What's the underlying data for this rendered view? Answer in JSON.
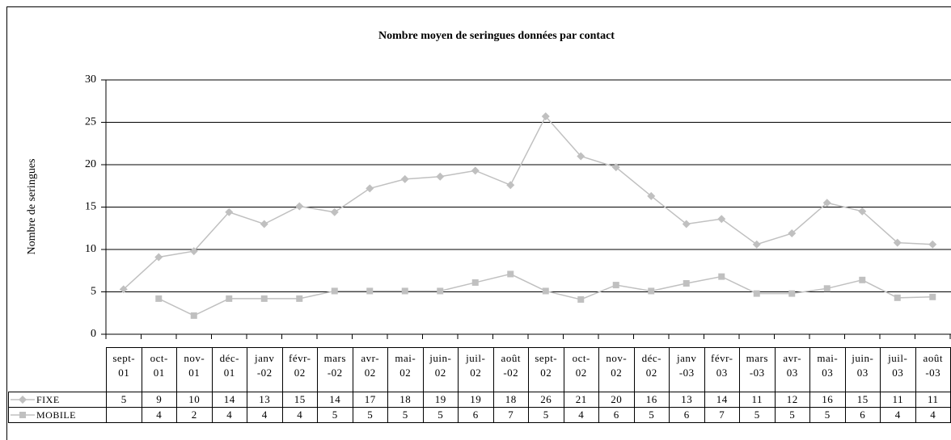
{
  "chart_data": {
    "type": "line",
    "title": "Nombre moyen de seringues données par contact",
    "y_label": "Nombre de seringues",
    "categories": [
      "sept-01",
      "oct-01",
      "nov-01",
      "déc-01",
      "janv-02",
      "févr-02",
      "mars-02",
      "avr-02",
      "mai-02",
      "juin-02",
      "juil-02",
      "août-02",
      "sept-02",
      "oct-02",
      "nov-02",
      "déc-02",
      "janv-03",
      "févr-03",
      "mars-03",
      "avr-03",
      "mai-03",
      "juin-03",
      "juil-03",
      "août-03"
    ],
    "series": [
      {
        "name": "FIXE",
        "color": "#c0c0c0",
        "marker": "diamond",
        "values": [
          5.3,
          9.1,
          9.8,
          14.4,
          13.0,
          15.1,
          14.4,
          17.2,
          18.3,
          18.6,
          19.3,
          17.6,
          25.7,
          21.0,
          19.7,
          16.3,
          13.0,
          13.6,
          10.6,
          11.9,
          15.5,
          14.5,
          10.8,
          10.6
        ],
        "value_labels": [
          "5",
          "9",
          "10",
          "14",
          "13",
          "15",
          "14",
          "17",
          "18",
          "19",
          "19",
          "18",
          "26",
          "21",
          "20",
          "16",
          "13",
          "14",
          "11",
          "12",
          "16",
          "15",
          "11",
          "11"
        ]
      },
      {
        "name": "MOBILE",
        "color": "#c0c0c0",
        "marker": "square",
        "values": [
          null,
          4.2,
          2.2,
          4.2,
          4.2,
          4.2,
          5.1,
          5.1,
          5.1,
          5.1,
          6.1,
          7.1,
          5.1,
          4.1,
          5.8,
          5.1,
          6.0,
          6.8,
          4.8,
          4.8,
          5.4,
          6.4,
          4.3,
          4.4
        ],
        "value_labels": [
          null,
          "4",
          "2",
          "4",
          "4",
          "4",
          "5",
          "5",
          "5",
          "5",
          "6",
          "7",
          "5",
          "4",
          "6",
          "5",
          "6",
          "7",
          "5",
          "5",
          "5",
          "6",
          "4",
          "4"
        ]
      }
    ],
    "ylim": [
      0,
      30
    ],
    "yticks": [
      0,
      5,
      10,
      15,
      20,
      25,
      30
    ],
    "grid": true
  }
}
